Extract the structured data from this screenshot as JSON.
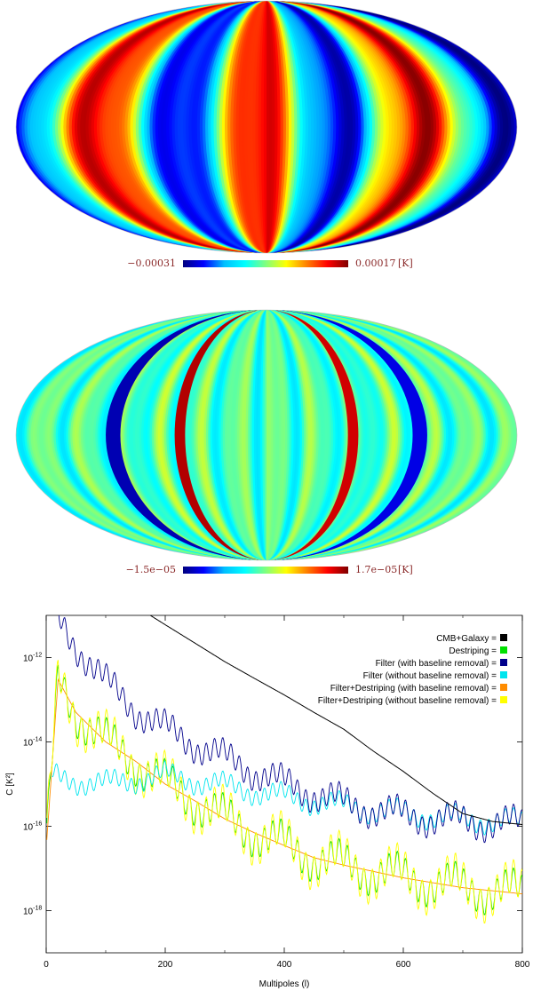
{
  "maps": [
    {
      "colorbar": {
        "min_label": "−0.00031",
        "max_label": "0.00017",
        "unit": "[K]"
      }
    },
    {
      "colorbar": {
        "min_label": "−1.5e−05",
        "max_label": "1.7e−05",
        "unit": "[K]"
      }
    }
  ],
  "colormap": [
    "#00007f",
    "#0000ff",
    "#00bfff",
    "#00ffff",
    "#7fff7f",
    "#ffff00",
    "#ff7f00",
    "#ff0000",
    "#7f0000"
  ],
  "chart_data": {
    "type": "line",
    "xlabel": "Multipoles (l)",
    "ylabel": "C [K²]",
    "xlim": [
      0,
      800
    ],
    "ylim": [
      1e-19,
      1e-11
    ],
    "yscale": "log",
    "x_ticks": [
      "0",
      "200",
      "400",
      "600",
      "800"
    ],
    "y_ticks": [
      {
        "base": "10",
        "exp": "-12",
        "value": 1e-12
      },
      {
        "base": "10",
        "exp": "-14",
        "value": 1e-14
      },
      {
        "base": "10",
        "exp": "-16",
        "value": 1e-16
      },
      {
        "base": "10",
        "exp": "-18",
        "value": 1e-18
      }
    ],
    "legend_position": "top-right",
    "series": [
      {
        "name": "CMB+Galaxy =",
        "color": "#000000",
        "points": [
          [
            175,
            1e-11
          ],
          [
            200,
            6e-12
          ],
          [
            250,
            2.2e-12
          ],
          [
            300,
            8e-13
          ],
          [
            350,
            3.2e-13
          ],
          [
            400,
            1.3e-13
          ],
          [
            450,
            5e-14
          ],
          [
            500,
            2e-14
          ],
          [
            550,
            6e-15
          ],
          [
            600,
            2e-15
          ],
          [
            650,
            6e-16
          ],
          [
            700,
            2e-16
          ],
          [
            750,
            1.3e-16
          ],
          [
            800,
            1.1e-16
          ]
        ]
      },
      {
        "name": "Destriping =",
        "color": "#00e000",
        "points": [
          [
            0,
            3e-17
          ],
          [
            20,
            3e-13
          ],
          [
            50,
            5e-14
          ],
          [
            100,
            1e-14
          ],
          [
            150,
            3.5e-15
          ],
          [
            200,
            1e-15
          ],
          [
            250,
            4e-16
          ],
          [
            300,
            1.5e-16
          ],
          [
            350,
            7e-17
          ],
          [
            400,
            3.5e-17
          ],
          [
            450,
            1.8e-17
          ],
          [
            500,
            1.2e-17
          ],
          [
            600,
            6e-18
          ],
          [
            700,
            3.5e-18
          ],
          [
            800,
            2.5e-18
          ]
        ]
      },
      {
        "name": "Filter (with baseline removal) =",
        "color": "#00008b",
        "points": [
          [
            15,
            1e-11
          ],
          [
            50,
            2e-12
          ],
          [
            100,
            2.5e-13
          ],
          [
            150,
            6e-14
          ],
          [
            200,
            2e-14
          ],
          [
            250,
            9e-15
          ],
          [
            300,
            4e-15
          ],
          [
            350,
            2e-15
          ],
          [
            400,
            1e-15
          ],
          [
            450,
            6e-16
          ],
          [
            500,
            3.5e-16
          ],
          [
            600,
            1.8e-16
          ],
          [
            700,
            1.3e-16
          ],
          [
            800,
            1.1e-16
          ]
        ]
      },
      {
        "name": "Filter (without baseline removal) =",
        "color": "#00e5ee",
        "points": [
          [
            10,
            1.5e-15
          ],
          [
            50,
            1.2e-15
          ],
          [
            100,
            1e-15
          ],
          [
            150,
            1.3e-15
          ],
          [
            200,
            1.6e-15
          ],
          [
            250,
            1.2e-15
          ],
          [
            300,
            9e-16
          ],
          [
            400,
            5e-16
          ],
          [
            500,
            3e-16
          ],
          [
            600,
            2e-16
          ],
          [
            700,
            1.5e-16
          ],
          [
            800,
            1.2e-16
          ]
        ]
      },
      {
        "name": "Filter+Destriping (with baseline removal) =",
        "color": "#ff8c00",
        "points": [
          [
            0,
            3e-17
          ],
          [
            20,
            3e-13
          ],
          [
            50,
            5e-14
          ],
          [
            100,
            1e-14
          ],
          [
            150,
            3.5e-15
          ],
          [
            200,
            1e-15
          ],
          [
            250,
            4e-16
          ],
          [
            300,
            1.5e-16
          ],
          [
            350,
            7e-17
          ],
          [
            400,
            3.5e-17
          ],
          [
            450,
            1.8e-17
          ],
          [
            500,
            1.2e-17
          ],
          [
            600,
            6e-18
          ],
          [
            700,
            3.5e-18
          ],
          [
            800,
            2.5e-18
          ]
        ]
      },
      {
        "name": "Filter+Destriping (without baseline removal) =",
        "color": "#ffff00",
        "points": [
          [
            0,
            3e-17
          ],
          [
            20,
            3e-13
          ],
          [
            50,
            5e-14
          ],
          [
            100,
            1e-14
          ],
          [
            150,
            3.5e-15
          ],
          [
            200,
            1e-15
          ],
          [
            250,
            4e-16
          ],
          [
            300,
            1.5e-16
          ],
          [
            350,
            7e-17
          ],
          [
            400,
            3.5e-17
          ],
          [
            450,
            1.8e-17
          ],
          [
            500,
            1.2e-17
          ],
          [
            600,
            6e-18
          ],
          [
            700,
            3.5e-18
          ],
          [
            800,
            2.5e-18
          ]
        ]
      }
    ]
  }
}
